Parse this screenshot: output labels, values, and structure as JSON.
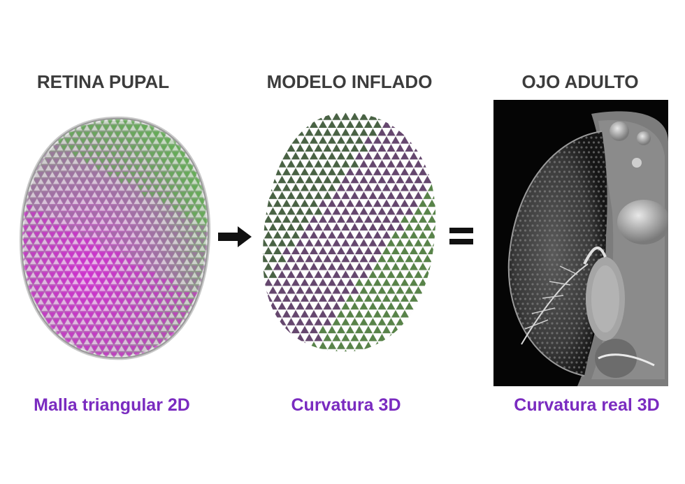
{
  "panels": [
    {
      "title": "RETINA PUPAL",
      "caption": "Malla triangular 2D"
    },
    {
      "title": "MODELO INFLADO",
      "caption": "Curvatura 3D"
    },
    {
      "title": "OJO ADULTO",
      "caption": "Curvatura real 3D"
    }
  ],
  "colors": {
    "title": "#3c3c3c",
    "caption": "#7a2bc0",
    "magenta": "#cc22cc",
    "green": "#55aa44",
    "dark": "#3a3a3a"
  },
  "icons": {
    "arrow": "right-arrow-icon",
    "equals": "equals-icon"
  }
}
